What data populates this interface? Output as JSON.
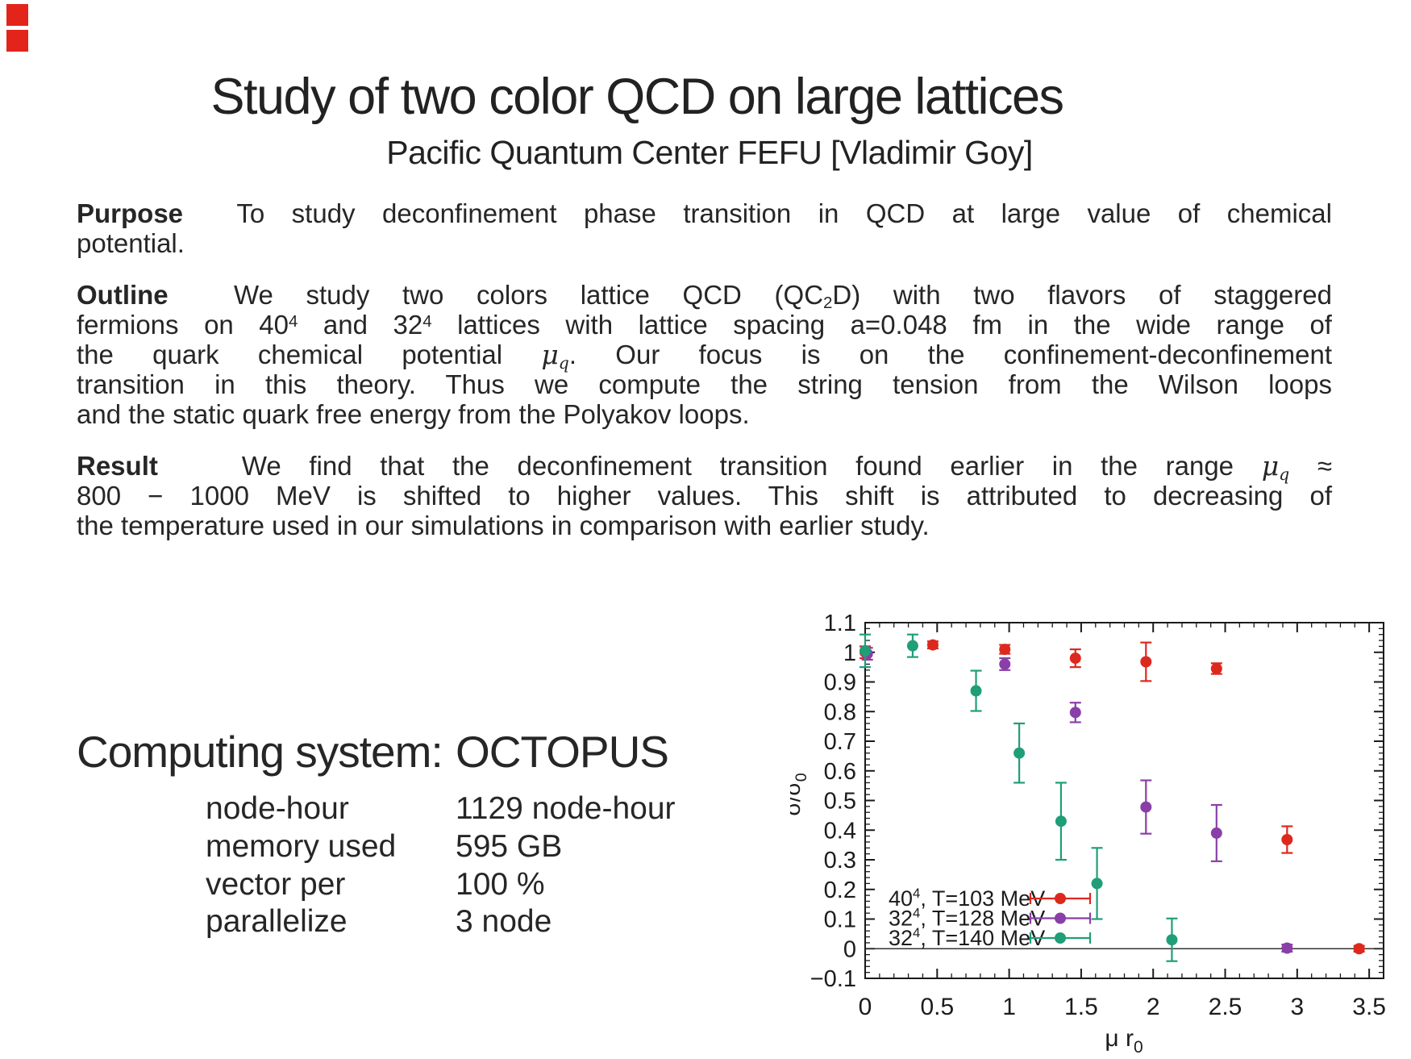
{
  "corner_markers": {
    "color": "#e3241b",
    "items": [
      {
        "x": 8,
        "y": 5,
        "size": 27
      },
      {
        "x": 8,
        "y": 37,
        "size": 27
      }
    ]
  },
  "title": "Study of two color QCD on large lattices",
  "subtitle": "Pacific Quantum Center FEFU [Vladimir Goy]",
  "paragraphs": [
    {
      "name": "purpose",
      "lines": [
        [
          {
            "t": "Purpose",
            "s": "b"
          },
          {
            "t": "  To study deconfinement phase transition in QCD at large value of chemical"
          }
        ],
        [
          {
            "t": "potential."
          }
        ]
      ]
    },
    {
      "name": "outline",
      "lines": [
        [
          {
            "t": "Outline",
            "s": "b"
          },
          {
            "t": "  We study two colors lattice QCD (QC"
          },
          {
            "t": "2",
            "s": "sub"
          },
          {
            "t": "D) with two flavors of staggered"
          }
        ],
        [
          {
            "t": "fermions on 40"
          },
          {
            "t": "4",
            "s": "sup"
          },
          {
            "t": " and 32"
          },
          {
            "t": "4",
            "s": "sup"
          },
          {
            "t": " lattices with lattice spacing a=0.048 fm in the wide range of"
          }
        ],
        [
          {
            "t": "the quark chemical potential "
          },
          {
            "t": "μ",
            "s": "i"
          },
          {
            "t": "q",
            "s": "isub"
          },
          {
            "t": ". Our focus is on the confinement-deconfinement"
          }
        ],
        [
          {
            "t": "transition in this theory. Thus we compute the string tension from the Wilson loops"
          }
        ],
        [
          {
            "t": "and the static quark free energy from the Polyakov loops."
          }
        ]
      ]
    },
    {
      "name": "result",
      "lines": [
        [
          {
            "t": "Result",
            "s": "b"
          },
          {
            "t": "   We find that the deconfinement transition found earlier in the range "
          },
          {
            "t": "μ",
            "s": "i"
          },
          {
            "t": "q",
            "s": "isub"
          },
          {
            "t": " ≈"
          }
        ],
        [
          {
            "t": "800 − 1000 MeV is shifted to higher values. This shift is attributed to decreasing of"
          }
        ],
        [
          {
            "t": "the temperature used in our simulations in comparison with earlier study."
          }
        ]
      ]
    }
  ],
  "computing": {
    "heading_label": "Computing system:",
    "heading_value": "OCTOPUS",
    "rows": [
      {
        "label": "node-hour",
        "value": "1129 node-hour"
      },
      {
        "label": "memory used",
        "value": "595 GB"
      },
      {
        "label": "vector per",
        "value": "100 %"
      },
      {
        "label": "parallelize",
        "value": "3 node"
      }
    ]
  },
  "chart_data": {
    "type": "scatter",
    "xlabel_runs": [
      {
        "t": "μ r"
      },
      {
        "t": "0",
        "s": "sub"
      }
    ],
    "ylabel_runs": [
      {
        "t": "σ/σ"
      },
      {
        "t": "0",
        "s": "sub"
      }
    ],
    "xlim": [
      0,
      3.6
    ],
    "ylim": [
      -0.1,
      1.1
    ],
    "xticks": [
      0,
      0.5,
      1,
      1.5,
      2,
      2.5,
      3,
      3.5
    ],
    "xtick_labels": [
      "0",
      "0.5",
      "1",
      "1.5",
      "2",
      "2.5",
      "3",
      "3.5"
    ],
    "yticks": [
      -0.1,
      0,
      0.1,
      0.2,
      0.3,
      0.4,
      0.5,
      0.6,
      0.7,
      0.8,
      0.9,
      1,
      1.1
    ],
    "ytick_labels": [
      "−0.1",
      "0",
      "0.1",
      "0.2",
      "0.3",
      "0.4",
      "0.5",
      "0.6",
      "0.7",
      "0.8",
      "0.9",
      "1",
      "1.1"
    ],
    "x_minor_step": 0.1,
    "y_minor_step": 0.02,
    "zero_line": true,
    "grid": false,
    "legend_position": "bottom-left",
    "series": [
      {
        "name_runs": [
          {
            "t": "40"
          },
          {
            "t": "4",
            "s": "sup"
          },
          {
            "t": ", T=103 MeV"
          }
        ],
        "color": "#dd281e",
        "points": [
          [
            0,
            1.0,
            0.02
          ],
          [
            0.47,
            1.025,
            0.012
          ],
          [
            0.97,
            1.01,
            0.015
          ],
          [
            1.46,
            0.98,
            0.03
          ],
          [
            1.95,
            0.968,
            0.065
          ],
          [
            2.44,
            0.945,
            0.018
          ],
          [
            2.93,
            0.368,
            0.045
          ],
          [
            3.43,
            0.0,
            0.01
          ]
        ]
      },
      {
        "name_runs": [
          {
            "t": "32"
          },
          {
            "t": "4",
            "s": "sup"
          },
          {
            "t": ", T=128 MeV"
          }
        ],
        "color": "#8a3fa8",
        "points": [
          [
            0.015,
            0.995,
            0.02
          ],
          [
            0.97,
            0.96,
            0.02
          ],
          [
            1.46,
            0.797,
            0.033
          ],
          [
            1.95,
            0.478,
            0.09
          ],
          [
            2.44,
            0.39,
            0.095
          ],
          [
            2.93,
            0.002,
            0.012
          ]
        ]
      },
      {
        "name_runs": [
          {
            "t": "32"
          },
          {
            "t": "4",
            "s": "sup"
          },
          {
            "t": ", T=140 MeV"
          }
        ],
        "color": "#1f9e78",
        "points": [
          [
            0,
            1.005,
            0.055
          ],
          [
            0.33,
            1.022,
            0.038
          ],
          [
            0.77,
            0.87,
            0.068
          ],
          [
            1.07,
            0.66,
            0.1
          ],
          [
            1.36,
            0.43,
            0.13
          ],
          [
            1.61,
            0.22,
            0.12
          ],
          [
            2.13,
            0.03,
            0.072
          ]
        ]
      }
    ]
  }
}
